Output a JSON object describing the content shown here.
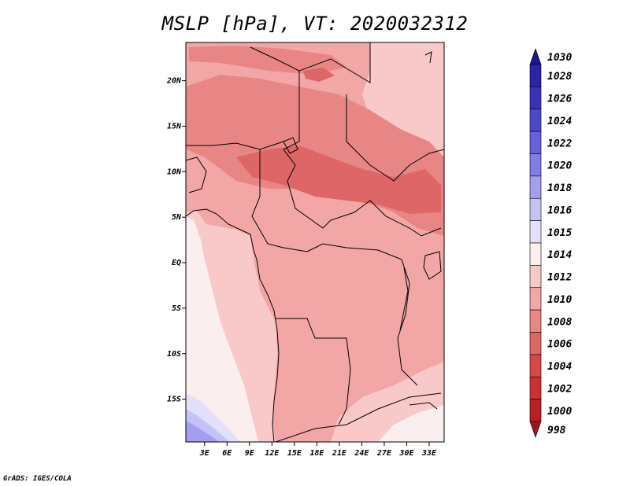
{
  "title": "MSLP [hPa], VT: 2020032312",
  "credit": "GrADS: IGES/COLA",
  "map": {
    "lat_labels": [
      {
        "value": 20,
        "label": "20N"
      },
      {
        "value": 15,
        "label": "15N"
      },
      {
        "value": 10,
        "label": "10N"
      },
      {
        "value": 5,
        "label": "5N"
      },
      {
        "value": 0,
        "label": "EQ"
      },
      {
        "value": -5,
        "label": "5S"
      },
      {
        "value": -10,
        "label": "10S"
      },
      {
        "value": -15,
        "label": "15S"
      }
    ],
    "lon_labels": [
      {
        "value": 3,
        "label": "3E"
      },
      {
        "value": 6,
        "label": "6E"
      },
      {
        "value": 9,
        "label": "9E"
      },
      {
        "value": 12,
        "label": "12E"
      },
      {
        "value": 15,
        "label": "15E"
      },
      {
        "value": 18,
        "label": "18E"
      },
      {
        "value": 21,
        "label": "21E"
      },
      {
        "value": 24,
        "label": "24E"
      },
      {
        "value": 27,
        "label": "27E"
      },
      {
        "value": 30,
        "label": "30E"
      },
      {
        "value": 33,
        "label": "33E"
      }
    ],
    "lon_range": [
      0.5,
      35.0
    ],
    "lat_range": [
      -19.7,
      24.2
    ]
  },
  "colorbar": {
    "levels": [
      {
        "label": "1030",
        "color": "#1c1494"
      },
      {
        "label": "1028",
        "color": "#2a22a8"
      },
      {
        "label": "1026",
        "color": "#3a32bc"
      },
      {
        "label": "1024",
        "color": "#4e48cc"
      },
      {
        "label": "1022",
        "color": "#6660da"
      },
      {
        "label": "1020",
        "color": "#827ce6"
      },
      {
        "label": "1018",
        "color": "#a39ef0"
      },
      {
        "label": "1016",
        "color": "#c5c2f6"
      },
      {
        "label": "1015",
        "color": "#e2e0fb"
      },
      {
        "label": "1014",
        "color": "#fbeeee"
      },
      {
        "label": "1012",
        "color": "#f9c9c9"
      },
      {
        "label": "1010",
        "color": "#f3a6a6"
      },
      {
        "label": "1008",
        "color": "#e88686"
      },
      {
        "label": "1006",
        "color": "#df6666"
      },
      {
        "label": "1004",
        "color": "#d84848"
      },
      {
        "label": "1002",
        "color": "#cc3030"
      },
      {
        "label": "1000",
        "color": "#b82020"
      },
      {
        "label": "998",
        "color": "#a01616"
      }
    ]
  }
}
